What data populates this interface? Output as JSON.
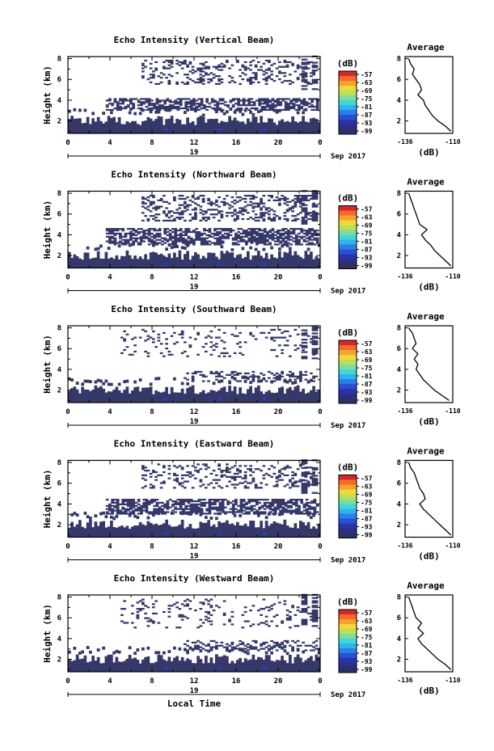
{
  "figure": {
    "colorbar_unit": "(dB)",
    "colorbar_ticks": [
      "-57",
      "-63",
      "-69",
      "-75",
      "-81",
      "-87",
      "-93",
      "-99"
    ],
    "colorbar_colors": [
      "#d62728",
      "#f26b2a",
      "#f6a22b",
      "#f2d73a",
      "#b9e05a",
      "#7fdc9c",
      "#3fd7d7",
      "#2fb2ef",
      "#2b7fe6",
      "#2850d4",
      "#2a34a8",
      "#2c2f86",
      "#2e3060"
    ],
    "cell_color": "#353869",
    "accent_color": "#2a3bd0",
    "x_ticks": [
      "0",
      "4",
      "8",
      "12",
      "16",
      "20",
      "0"
    ],
    "x_date_day": "19",
    "x_date_month": "Sep 2017",
    "y_ticks": [
      "8",
      "6",
      "4",
      "2"
    ],
    "y_label": "Height (km)",
    "x_label": "Local Time",
    "avg_title": "Average",
    "avg_x_ticks": [
      "-136",
      "-110"
    ],
    "avg_unit": "(dB)"
  },
  "chart_data": [
    {
      "type": "heatmap",
      "title": "Echo Intensity (Vertical Beam)",
      "xlabel": "",
      "ylabel": "Height (km)",
      "xlim": [
        0,
        24
      ],
      "ylim": [
        0.8,
        8.2
      ],
      "zlim": [
        -99,
        -57
      ],
      "clutter_bands": [
        {
          "t0": 3.6,
          "t1": 23.8,
          "z0": 3.0,
          "z1": 4.2,
          "density": 0.6
        },
        {
          "t0": 7.0,
          "t1": 23.5,
          "z0": 5.5,
          "z1": 7.8,
          "density": 0.25
        }
      ],
      "average_profile": {
        "xlim": [
          -136,
          -110
        ],
        "ylim": [
          0.8,
          8.2
        ],
        "height_km": [
          8.0,
          7.5,
          7.0,
          6.5,
          6.0,
          5.5,
          5.0,
          4.5,
          4.0,
          3.5,
          3.0,
          2.5,
          2.0,
          1.5,
          1.0
        ],
        "db": [
          -134,
          -133,
          -131,
          -132,
          -130,
          -128,
          -127,
          -129,
          -126,
          -125,
          -123,
          -121,
          -118,
          -114,
          -111
        ]
      }
    },
    {
      "type": "heatmap",
      "title": "Echo Intensity (Northward Beam)",
      "xlabel": "",
      "ylabel": "Height (km)",
      "xlim": [
        0,
        24
      ],
      "ylim": [
        0.8,
        8.2
      ],
      "zlim": [
        -99,
        -57
      ],
      "clutter_bands": [
        {
          "t0": 3.6,
          "t1": 23.8,
          "z0": 3.0,
          "z1": 4.6,
          "density": 0.65
        },
        {
          "t0": 7.0,
          "t1": 23.5,
          "z0": 5.3,
          "z1": 7.8,
          "density": 0.3
        }
      ],
      "average_profile": {
        "xlim": [
          -136,
          -110
        ],
        "ylim": [
          0.8,
          8.2
        ],
        "height_km": [
          8.0,
          7.5,
          7.0,
          6.5,
          6.0,
          5.5,
          5.0,
          4.5,
          4.0,
          3.5,
          3.0,
          2.5,
          2.0,
          1.5,
          1.0
        ],
        "db": [
          -134,
          -133,
          -132,
          -131,
          -130,
          -129,
          -128,
          -124,
          -127,
          -125,
          -122,
          -120,
          -117,
          -114,
          -111
        ]
      }
    },
    {
      "type": "heatmap",
      "title": "Echo Intensity (Southward Beam)",
      "xlabel": "",
      "ylabel": "Height (km)",
      "xlim": [
        0,
        24
      ],
      "ylim": [
        0.8,
        8.2
      ],
      "zlim": [
        -99,
        -57
      ],
      "clutter_bands": [
        {
          "t0": 11.0,
          "t1": 23.8,
          "z0": 2.8,
          "z1": 3.8,
          "density": 0.35
        },
        {
          "t0": 5.0,
          "t1": 23.5,
          "z0": 5.2,
          "z1": 7.8,
          "density": 0.1
        }
      ],
      "average_profile": {
        "xlim": [
          -136,
          -110
        ],
        "ylim": [
          0.8,
          8.2
        ],
        "height_km": [
          8.0,
          7.5,
          7.0,
          6.5,
          6.0,
          5.5,
          5.0,
          4.5,
          4.0,
          3.5,
          3.0,
          2.5,
          2.0,
          1.5,
          1.0
        ],
        "db": [
          -134,
          -132,
          -131,
          -130,
          -132,
          -129,
          -131,
          -129,
          -130,
          -128,
          -126,
          -123,
          -120,
          -116,
          -112
        ]
      }
    },
    {
      "type": "heatmap",
      "title": "Echo Intensity (Eastward Beam)",
      "xlabel": "",
      "ylabel": "Height (km)",
      "xlim": [
        0,
        24
      ],
      "ylim": [
        0.8,
        8.2
      ],
      "zlim": [
        -99,
        -57
      ],
      "clutter_bands": [
        {
          "t0": 3.6,
          "t1": 23.8,
          "z0": 3.0,
          "z1": 4.4,
          "density": 0.6
        },
        {
          "t0": 7.0,
          "t1": 23.5,
          "z0": 5.5,
          "z1": 7.8,
          "density": 0.25
        }
      ],
      "average_profile": {
        "xlim": [
          -136,
          -110
        ],
        "ylim": [
          0.8,
          8.2
        ],
        "height_km": [
          8.0,
          7.5,
          7.0,
          6.5,
          6.0,
          5.5,
          5.0,
          4.5,
          4.0,
          3.5,
          3.0,
          2.5,
          2.0,
          1.5,
          1.0
        ],
        "db": [
          -134,
          -133,
          -131,
          -130,
          -129,
          -128,
          -126,
          -125,
          -128,
          -126,
          -123,
          -120,
          -117,
          -114,
          -111
        ]
      }
    },
    {
      "type": "heatmap",
      "title": "Echo Intensity (Westward Beam)",
      "xlabel": "Local Time",
      "ylabel": "Height (km)",
      "xlim": [
        0,
        24
      ],
      "ylim": [
        0.8,
        8.2
      ],
      "zlim": [
        -99,
        -57
      ],
      "clutter_bands": [
        {
          "t0": 11.0,
          "t1": 23.8,
          "z0": 2.8,
          "z1": 3.8,
          "density": 0.35
        },
        {
          "t0": 5.0,
          "t1": 23.5,
          "z0": 5.0,
          "z1": 7.8,
          "density": 0.12
        }
      ],
      "average_profile": {
        "xlim": [
          -136,
          -110
        ],
        "ylim": [
          0.8,
          8.2
        ],
        "height_km": [
          8.0,
          7.5,
          7.0,
          6.5,
          6.0,
          5.5,
          5.0,
          4.5,
          4.0,
          3.5,
          3.0,
          2.5,
          2.0,
          1.5,
          1.0
        ],
        "db": [
          -134,
          -133,
          -132,
          -131,
          -130,
          -127,
          -129,
          -126,
          -129,
          -127,
          -124,
          -121,
          -118,
          -114,
          -111
        ]
      }
    }
  ]
}
